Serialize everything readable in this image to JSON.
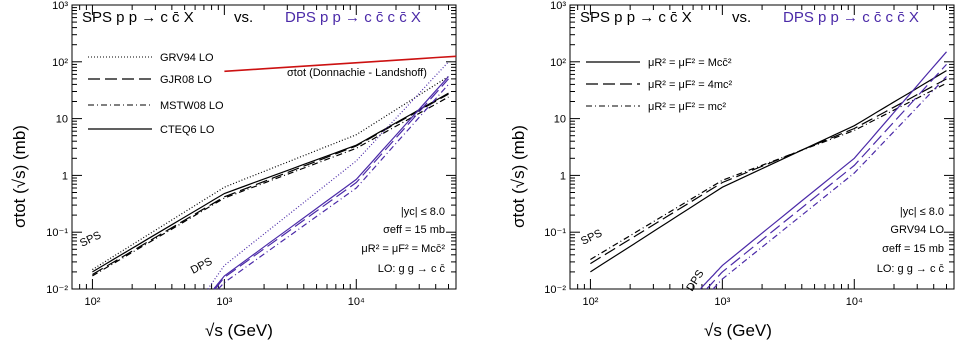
{
  "colors": {
    "sps": "#000000",
    "dps": "#4b2aa8",
    "red": "#cc1111"
  },
  "chart_data": [
    {
      "type": "line",
      "panel": "left",
      "title_sps": "SPS  p p → c c̄ X",
      "title_vs": "vs.",
      "title_dps": "DPS  p p → c c̄ c c̄ X",
      "xlabel": "√s   (GeV)",
      "ylabel": "σtot (√s)   (mb)",
      "xscale": "log",
      "yscale": "log",
      "xlim": [
        70,
        57000
      ],
      "ylim": [
        0.01,
        1000
      ],
      "xticks": [
        "10²",
        "10³",
        "10⁴"
      ],
      "yticks": [
        "10⁻²",
        "10⁻¹",
        "1",
        "10",
        "10²",
        "10³"
      ],
      "legend": [
        "GRV94 LO",
        "GJR08 LO",
        "MSTW08 LO",
        "CTEQ6 LO"
      ],
      "annotations": [
        "|yc| ≤ 8.0",
        "σeff = 15 mb",
        "μR² = μF² = Mcc̄²",
        "LO:   g g → c c̄"
      ],
      "label_sps": "SPS",
      "label_dps": "DPS",
      "label_red": "σtot (Donnachie - Landshoff)",
      "series": [
        {
          "name": "GRV94 LO",
          "group": "SPS",
          "style": "dotted",
          "x": [
            100,
            1000,
            10000,
            50000
          ],
          "y": [
            0.022,
            0.62,
            5.2,
            55
          ]
        },
        {
          "name": "GJR08 LO",
          "group": "SPS",
          "style": "longdash",
          "x": [
            100,
            1000,
            10000,
            50000
          ],
          "y": [
            0.018,
            0.42,
            3.3,
            27
          ]
        },
        {
          "name": "MSTW08 LO",
          "group": "SPS",
          "style": "dashdot",
          "x": [
            100,
            1000,
            10000,
            50000
          ],
          "y": [
            0.017,
            0.4,
            3.0,
            24
          ]
        },
        {
          "name": "CTEQ6 LO",
          "group": "SPS",
          "style": "solid",
          "x": [
            100,
            1000,
            10000,
            50000
          ],
          "y": [
            0.02,
            0.48,
            3.4,
            28
          ]
        },
        {
          "name": "GRV94 LO",
          "group": "DPS",
          "style": "dotted",
          "x": [
            750,
            1000,
            10000,
            50000
          ],
          "y": [
            0.01,
            0.026,
            1.8,
            100
          ]
        },
        {
          "name": "GJR08 LO",
          "group": "DPS",
          "style": "longdash",
          "x": [
            850,
            1000,
            10000,
            50000
          ],
          "y": [
            0.01,
            0.016,
            0.75,
            50
          ]
        },
        {
          "name": "MSTW08 LO",
          "group": "DPS",
          "style": "dashdot",
          "x": [
            900,
            1000,
            10000,
            50000
          ],
          "y": [
            0.01,
            0.013,
            0.6,
            40
          ]
        },
        {
          "name": "CTEQ6 LO",
          "group": "DPS",
          "style": "solid",
          "x": [
            830,
            1000,
            10000,
            50000
          ],
          "y": [
            0.01,
            0.017,
            0.85,
            55
          ]
        },
        {
          "name": "σtot (Donnachie - Landshoff)",
          "group": "TOT",
          "style": "solid",
          "x": [
            1000,
            57000
          ],
          "y": [
            68,
            125
          ]
        }
      ]
    },
    {
      "type": "line",
      "panel": "right",
      "title_sps": "SPS  p p → c c̄ X",
      "title_vs": "vs.",
      "title_dps": "DPS  p p → c c̄ c c̄ X",
      "xlabel": "√s   (GeV)",
      "ylabel": "σtot (√s)   (mb)",
      "xscale": "log",
      "yscale": "log",
      "xlim": [
        70,
        57000
      ],
      "ylim": [
        0.01,
        1000
      ],
      "xticks": [
        "10²",
        "10³",
        "10⁴"
      ],
      "yticks": [
        "10⁻²",
        "10⁻¹",
        "1",
        "10",
        "10²",
        "10³"
      ],
      "legend": [
        "μR² = μF² = Mcc̄²",
        "μR² = μF² = 4mc²",
        "μR² = μF² = mc²"
      ],
      "annotations": [
        "|yc| ≤ 8.0",
        "GRV94 LO",
        "σeff = 15 mb",
        "LO:   g g → c c̄"
      ],
      "label_sps": "SPS",
      "label_dps": "DPS",
      "series": [
        {
          "name": "μR² = μF² = Mcc̄²",
          "group": "SPS",
          "style": "solid",
          "x": [
            100,
            1000,
            10000,
            50000
          ],
          "y": [
            0.02,
            0.62,
            7.5,
            70
          ]
        },
        {
          "name": "μR² = μF² = 4mc²",
          "group": "SPS",
          "style": "longdash",
          "x": [
            100,
            1000,
            10000,
            50000
          ],
          "y": [
            0.028,
            0.75,
            6.7,
            50
          ]
        },
        {
          "name": "μR² = μF² = mc²",
          "group": "SPS",
          "style": "dashdot",
          "x": [
            100,
            1000,
            10000,
            50000
          ],
          "y": [
            0.033,
            0.82,
            6.2,
            42
          ]
        },
        {
          "name": "μR² = μF² = Mcc̄²",
          "group": "DPS",
          "style": "solid",
          "x": [
            680,
            1000,
            10000,
            50000
          ],
          "y": [
            0.01,
            0.026,
            2.0,
            150
          ]
        },
        {
          "name": "μR² = μF² = 4mc²",
          "group": "DPS",
          "style": "longdash",
          "x": [
            760,
            1000,
            10000,
            50000
          ],
          "y": [
            0.01,
            0.02,
            1.5,
            90
          ]
        },
        {
          "name": "μR² = μF² = mc²",
          "group": "DPS",
          "style": "dashdot",
          "x": [
            850,
            1000,
            10000,
            50000
          ],
          "y": [
            0.01,
            0.015,
            1.1,
            55
          ]
        }
      ]
    }
  ]
}
